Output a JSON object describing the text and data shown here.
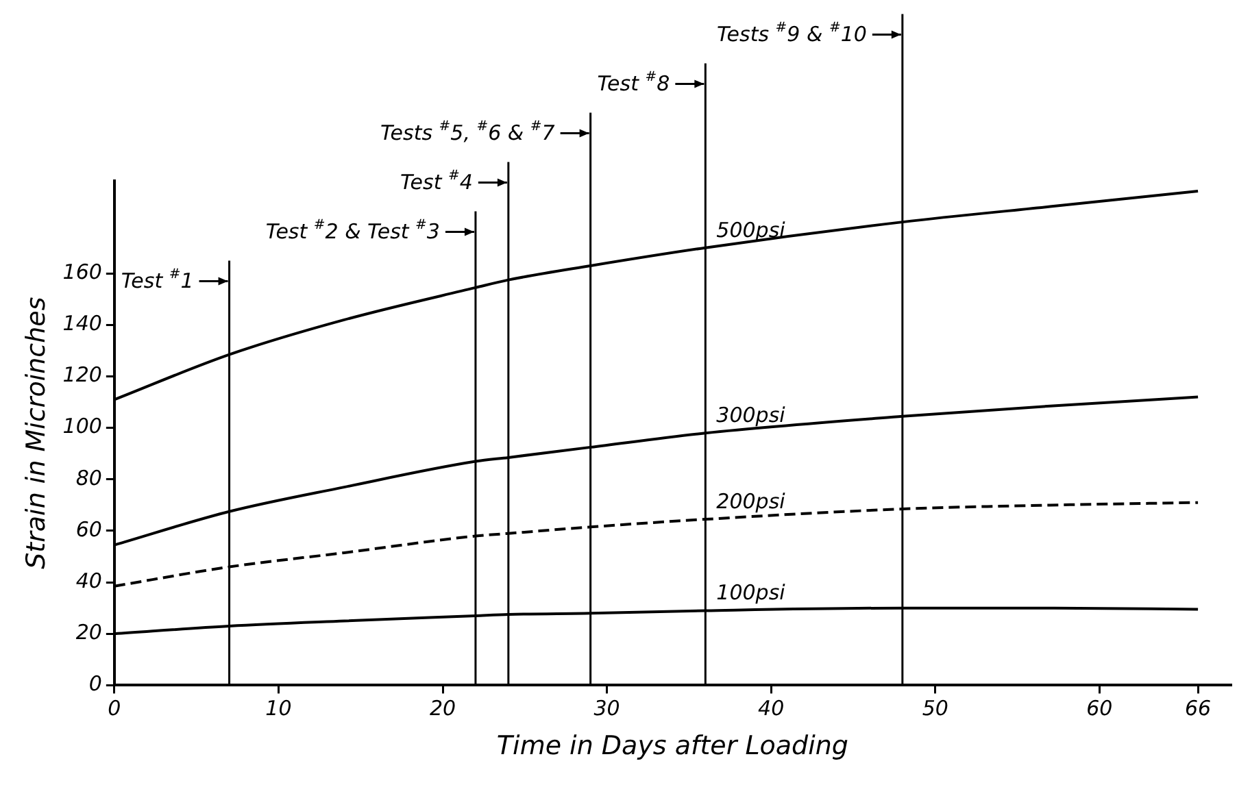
{
  "chart_data": {
    "type": "line",
    "xlabel": "Time in Days after Loading",
    "ylabel": "Strain in Microinches",
    "x": [
      0,
      7,
      14,
      22,
      24,
      29,
      36,
      48,
      57,
      66
    ],
    "series": [
      {
        "name": "500psi",
        "color": "#000000",
        "line_style": "solid",
        "values": [
          111,
          128.5,
          142,
          154.5,
          157.5,
          163,
          170,
          180,
          186,
          192
        ]
      },
      {
        "name": "300psi",
        "color": "#000000",
        "line_style": "solid",
        "values": [
          54.5,
          67.5,
          77,
          87,
          88.5,
          92.5,
          98,
          104.5,
          108.5,
          112
        ]
      },
      {
        "name": "200psi",
        "color": "#000000",
        "line_style": "dashed",
        "values": [
          38.5,
          46,
          51.5,
          58,
          59,
          61.5,
          64.5,
          68.5,
          70,
          71
        ]
      },
      {
        "name": "100psi",
        "color": "#000000",
        "line_style": "solid",
        "values": [
          20,
          23,
          25,
          27,
          27.5,
          28,
          29,
          30,
          30,
          29.5
        ]
      }
    ],
    "xlim": [
      0,
      68
    ],
    "xticks": [
      0,
      10,
      20,
      30,
      40,
      50,
      60,
      66
    ],
    "ylim": [
      0,
      196
    ],
    "yticks": [
      0,
      20,
      40,
      60,
      80,
      100,
      120,
      140,
      160
    ],
    "grid": false,
    "legend": false,
    "marker": "none",
    "ref_lines": [
      {
        "axis": "x",
        "value": 7,
        "label": "Test $^{#}$1"
      },
      {
        "axis": "x",
        "value": 22,
        "label": "Test $^{#}$2 & Test $^{#}$3"
      },
      {
        "axis": "x",
        "value": 24,
        "label": "Test $^{#}$4"
      },
      {
        "axis": "x",
        "value": 29,
        "label": "Tests $^{#}$5, $^{#}$6 & $^{#}$7"
      },
      {
        "axis": "x",
        "value": 36,
        "label": "Test $^{#}$8"
      },
      {
        "axis": "x",
        "value": 48,
        "label": "Tests $^{#}$9 & $^{#}$10"
      }
    ]
  }
}
